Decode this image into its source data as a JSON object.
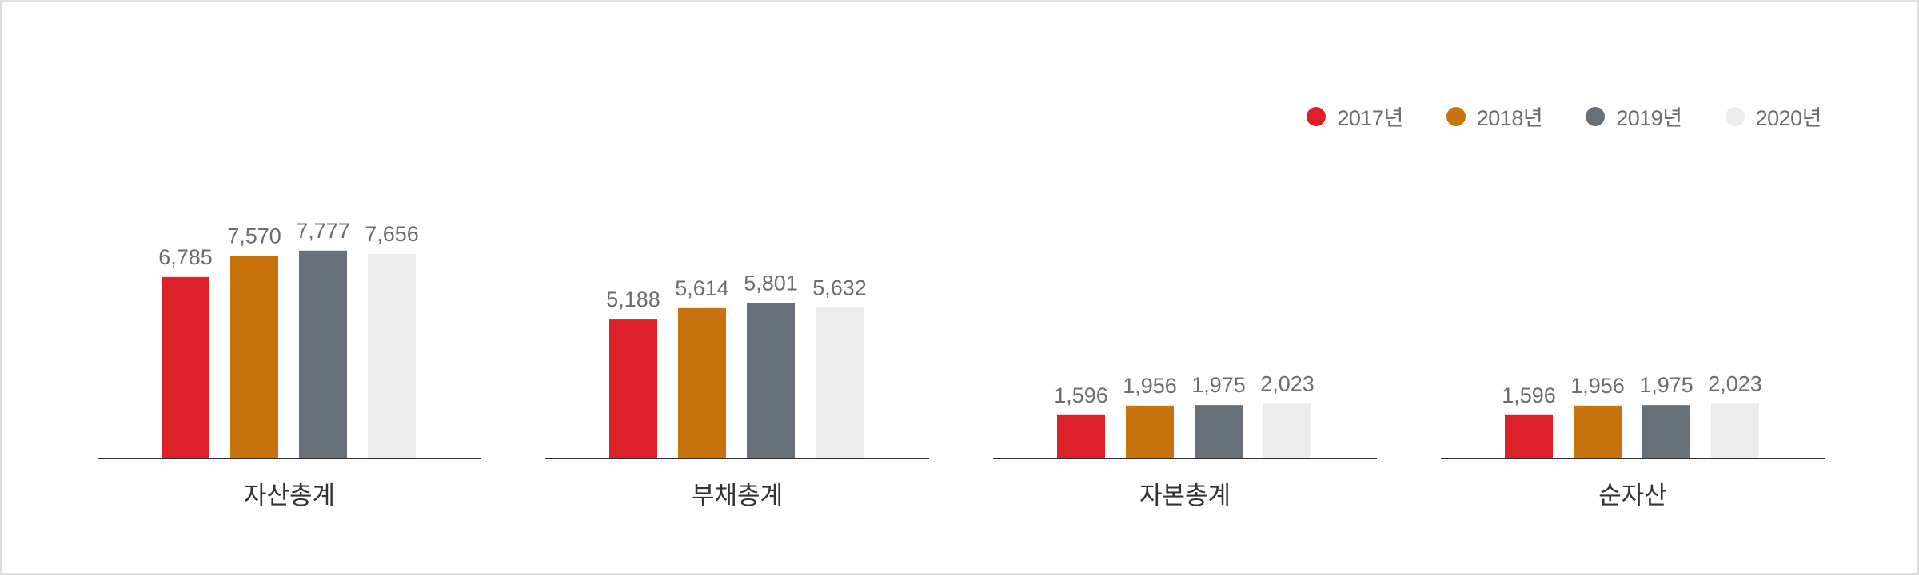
{
  "chart_data": {
    "type": "bar",
    "categories": [
      "자산총계",
      "부채총계",
      "자본총계",
      "순자산"
    ],
    "series": [
      {
        "name": "2017년",
        "color": "#db2029",
        "values": [
          6785,
          5188,
          1596,
          1596
        ],
        "labels": [
          "6,785",
          "5,188",
          "1,596",
          "1,596"
        ]
      },
      {
        "name": "2018년",
        "color": "#c8720e",
        "values": [
          7570,
          5614,
          1956,
          1956
        ],
        "labels": [
          "7,570",
          "5,614",
          "1,956",
          "1,956"
        ]
      },
      {
        "name": "2019년",
        "color": "#677078",
        "values": [
          7777,
          5801,
          1975,
          1975
        ],
        "labels": [
          "7,777",
          "5,801",
          "1,975",
          "1,975"
        ]
      },
      {
        "name": "2020년",
        "color": "#ececec",
        "values": [
          7656,
          5632,
          2023,
          2023
        ],
        "labels": [
          "7,656",
          "5,632",
          "2,023",
          "2,023"
        ]
      }
    ],
    "legend_position": "top-right",
    "grid": false,
    "ylim": [
      0,
      8000
    ]
  }
}
